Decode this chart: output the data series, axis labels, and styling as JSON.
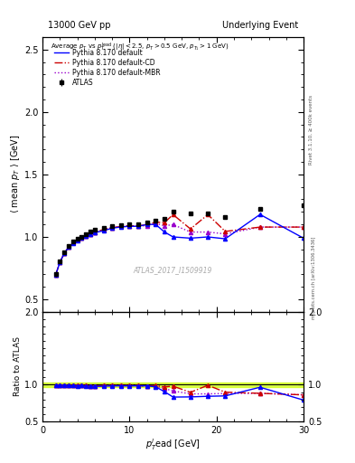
{
  "title_left": "13000 GeV pp",
  "title_right": "Underlying Event",
  "ylabel_main": "$\\langle$ mean $p_T$ $\\rangle$ [GeV]",
  "ylabel_ratio": "Ratio to ATLAS",
  "xlabel": "$p_T^l$ead [GeV]",
  "watermark": "ATLAS_2017_I1509919",
  "right_label": "mcplots.cern.ch [arXiv:1306.3436]",
  "rivet_label": "Rivet 3.1.10, ≥ 400k events",
  "xlim": [
    0,
    30
  ],
  "ylim_main": [
    0.4,
    2.6
  ],
  "ylim_ratio": [
    0.5,
    2.0
  ],
  "atlas_x": [
    1.5,
    2.0,
    2.5,
    3.0,
    3.5,
    4.0,
    4.5,
    5.0,
    5.5,
    6.0,
    7.0,
    8.0,
    9.0,
    10.0,
    11.0,
    12.0,
    13.0,
    14.0,
    15.0,
    17.0,
    19.0,
    21.0,
    25.0,
    30.0
  ],
  "atlas_y": [
    0.7,
    0.8,
    0.875,
    0.925,
    0.96,
    0.985,
    1.0,
    1.02,
    1.04,
    1.055,
    1.07,
    1.085,
    1.095,
    1.1,
    1.1,
    1.115,
    1.13,
    1.145,
    1.2,
    1.185,
    1.185,
    1.16,
    1.22,
    1.25
  ],
  "atlas_yerr": [
    0.02,
    0.015,
    0.012,
    0.01,
    0.008,
    0.007,
    0.006,
    0.006,
    0.006,
    0.006,
    0.006,
    0.006,
    0.006,
    0.007,
    0.007,
    0.007,
    0.007,
    0.008,
    0.01,
    0.01,
    0.015,
    0.015,
    0.015,
    0.02
  ],
  "pythia_default_x": [
    1.5,
    2.0,
    2.5,
    3.0,
    3.5,
    4.0,
    4.5,
    5.0,
    5.5,
    6.0,
    7.0,
    8.0,
    9.0,
    10.0,
    11.0,
    12.0,
    13.0,
    14.0,
    15.0,
    17.0,
    19.0,
    21.0,
    25.0,
    30.0
  ],
  "pythia_default_y": [
    0.695,
    0.795,
    0.87,
    0.915,
    0.948,
    0.972,
    0.988,
    1.002,
    1.018,
    1.032,
    1.048,
    1.068,
    1.078,
    1.083,
    1.083,
    1.098,
    1.098,
    1.038,
    0.998,
    0.988,
    0.998,
    0.983,
    1.178,
    0.988
  ],
  "pythia_default_yerr": [
    0.015,
    0.012,
    0.01,
    0.008,
    0.007,
    0.006,
    0.006,
    0.005,
    0.005,
    0.005,
    0.005,
    0.006,
    0.006,
    0.007,
    0.007,
    0.008,
    0.008,
    0.009,
    0.01,
    0.01,
    0.015,
    0.015,
    0.015,
    0.02
  ],
  "pythia_cd_x": [
    1.5,
    2.0,
    2.5,
    3.0,
    3.5,
    4.0,
    4.5,
    5.0,
    5.5,
    6.0,
    7.0,
    8.0,
    9.0,
    10.0,
    11.0,
    12.0,
    13.0,
    14.0,
    15.0,
    17.0,
    19.0,
    21.0,
    25.0,
    30.0
  ],
  "pythia_cd_y": [
    0.695,
    0.795,
    0.87,
    0.915,
    0.952,
    0.977,
    0.992,
    1.007,
    1.022,
    1.037,
    1.057,
    1.072,
    1.082,
    1.087,
    1.087,
    1.097,
    1.117,
    1.112,
    1.177,
    1.062,
    1.177,
    1.042,
    1.077,
    1.077
  ],
  "pythia_cd_yerr": [
    0.015,
    0.012,
    0.01,
    0.008,
    0.007,
    0.006,
    0.006,
    0.005,
    0.005,
    0.005,
    0.005,
    0.006,
    0.006,
    0.007,
    0.007,
    0.008,
    0.008,
    0.009,
    0.01,
    0.01,
    0.015,
    0.015,
    0.015,
    0.02
  ],
  "pythia_mbr_x": [
    1.5,
    2.0,
    2.5,
    3.0,
    3.5,
    4.0,
    4.5,
    5.0,
    5.5,
    6.0,
    7.0,
    8.0,
    9.0,
    10.0,
    11.0,
    12.0,
    13.0,
    14.0,
    15.0,
    17.0,
    19.0,
    21.0,
    25.0,
    30.0
  ],
  "pythia_mbr_y": [
    0.695,
    0.795,
    0.87,
    0.915,
    0.952,
    0.977,
    0.992,
    1.007,
    1.022,
    1.037,
    1.057,
    1.072,
    1.082,
    1.087,
    1.087,
    1.087,
    1.107,
    1.087,
    1.097,
    1.037,
    1.037,
    1.022,
    1.077,
    1.077
  ],
  "pythia_mbr_yerr": [
    0.015,
    0.012,
    0.01,
    0.008,
    0.007,
    0.006,
    0.006,
    0.005,
    0.005,
    0.005,
    0.005,
    0.006,
    0.006,
    0.007,
    0.007,
    0.008,
    0.008,
    0.009,
    0.01,
    0.01,
    0.015,
    0.015,
    0.015,
    0.02
  ],
  "color_atlas": "#000000",
  "color_default": "#0000ff",
  "color_cd": "#cc0000",
  "color_mbr": "#9900cc",
  "ratio_band_color": "#ccff00",
  "ratio_band_alpha": 0.7,
  "ratio_band_lo": 0.97,
  "ratio_band_hi": 1.03
}
